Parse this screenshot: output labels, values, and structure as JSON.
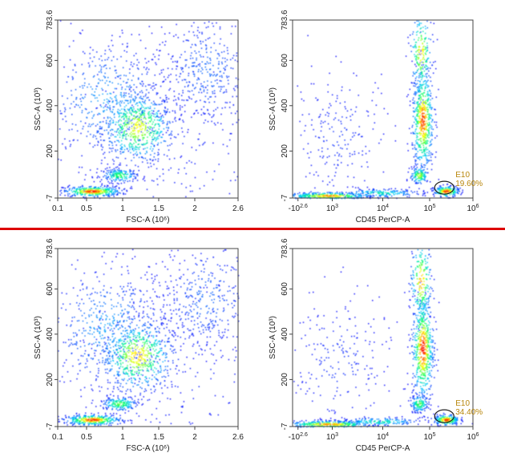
{
  "chart_data": [
    {
      "type": "scatter",
      "title": "",
      "xlabel": "FSC-A (10⁶)",
      "ylabel": "SSC-A (10³)",
      "x_ticks": [
        "0.1",
        "0.5",
        "1",
        "1.5",
        "2",
        "2.6"
      ],
      "y_ticks": [
        "-7",
        "200",
        "400",
        "600",
        "783.6"
      ],
      "xlim": [
        0.1,
        2.6
      ],
      "ylim": [
        -7,
        783.6
      ],
      "grid": false,
      "density_colormap": [
        "#0000ff",
        "#00c8ff",
        "#00ff64",
        "#ffff00",
        "#ff0000"
      ],
      "populations": [
        {
          "x": 1.2,
          "y": 300,
          "density": 0.75
        },
        {
          "x": 0.55,
          "y": 20,
          "density": 1.0
        },
        {
          "x": 0.95,
          "y": 95,
          "density": 0.55
        },
        {
          "x": 2.3,
          "y": 600,
          "density": 0.2
        }
      ]
    },
    {
      "type": "scatter",
      "title": "",
      "xlabel": "CD45 PerCP-A",
      "ylabel": "SSC-A (10³)",
      "x_ticks": [
        "-10^2.6",
        "10^3",
        "10^4",
        "10^5",
        "10^6"
      ],
      "y_ticks": [
        "-7",
        "200",
        "400",
        "600",
        "783.6"
      ],
      "x_scale": "biexponential",
      "ylim": [
        -7,
        783.6
      ],
      "grid": false,
      "gate": {
        "name": "E10",
        "percent": "19.60%"
      },
      "populations": [
        {
          "x": 40000,
          "y": 40,
          "density": 0.95
        },
        {
          "x": 15000,
          "y": 320,
          "density": 0.8
        },
        {
          "x": 500,
          "y": 10,
          "density": 0.7
        }
      ]
    },
    {
      "type": "scatter",
      "title": "",
      "xlabel": "FSC-A (10⁶)",
      "ylabel": "SSC-A (10³)",
      "x_ticks": [
        "0.1",
        "0.5",
        "1",
        "1.5",
        "2",
        "2.6"
      ],
      "y_ticks": [
        "-7",
        "200",
        "400",
        "600",
        "783.6"
      ],
      "xlim": [
        0.1,
        2.6
      ],
      "ylim": [
        -7,
        783.6
      ],
      "grid": false,
      "populations": [
        {
          "x": 1.2,
          "y": 270,
          "density": 0.8
        },
        {
          "x": 0.55,
          "y": 25,
          "density": 1.0
        },
        {
          "x": 0.9,
          "y": 90,
          "density": 0.6
        },
        {
          "x": 2.3,
          "y": 600,
          "density": 0.2
        }
      ]
    },
    {
      "type": "scatter",
      "title": "",
      "xlabel": "CD45 PerCP-A",
      "ylabel": "SSC-A (10³)",
      "x_ticks": [
        "-10^2.6",
        "10^3",
        "10^4",
        "10^5",
        "10^6"
      ],
      "y_ticks": [
        "-7",
        "200",
        "400",
        "600",
        "783.6"
      ],
      "x_scale": "biexponential",
      "ylim": [
        -7,
        783.6
      ],
      "grid": false,
      "gate": {
        "name": "E10",
        "percent": "34.40%"
      },
      "populations": [
        {
          "x": 40000,
          "y": 40,
          "density": 1.0
        },
        {
          "x": 15000,
          "y": 300,
          "density": 0.85
        },
        {
          "x": 500,
          "y": 12,
          "density": 0.6
        }
      ]
    }
  ],
  "colors": {
    "separator": "#dd0000",
    "gate_label": "#b8860b",
    "gate_outline": "#222222"
  }
}
